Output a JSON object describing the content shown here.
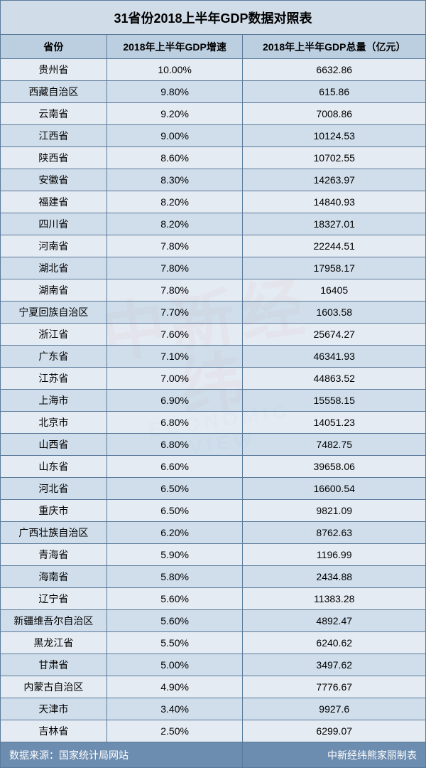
{
  "title": "31省份2018上半年GDP数据对照表",
  "columns": [
    "省份",
    "2018年上半年GDP增速",
    "2018年上半年GDP总量（亿元）"
  ],
  "rows": [
    [
      "贵州省",
      "10.00%",
      "6632.86"
    ],
    [
      "西藏自治区",
      "9.80%",
      "615.86"
    ],
    [
      "云南省",
      "9.20%",
      "7008.86"
    ],
    [
      "江西省",
      "9.00%",
      "10124.53"
    ],
    [
      "陕西省",
      "8.60%",
      "10702.55"
    ],
    [
      "安徽省",
      "8.30%",
      "14263.97"
    ],
    [
      "福建省",
      "8.20%",
      "14840.93"
    ],
    [
      "四川省",
      "8.20%",
      "18327.01"
    ],
    [
      "河南省",
      "7.80%",
      "22244.51"
    ],
    [
      "湖北省",
      "7.80%",
      "17958.17"
    ],
    [
      "湖南省",
      "7.80%",
      "16405"
    ],
    [
      "宁夏回族自治区",
      "7.70%",
      "1603.58"
    ],
    [
      "浙江省",
      "7.60%",
      "25674.27"
    ],
    [
      "广东省",
      "7.10%",
      "46341.93"
    ],
    [
      "江苏省",
      "7.00%",
      "44863.52"
    ],
    [
      "上海市",
      "6.90%",
      "15558.15"
    ],
    [
      "北京市",
      "6.80%",
      "14051.23"
    ],
    [
      "山西省",
      "6.80%",
      "7482.75"
    ],
    [
      "山东省",
      "6.60%",
      "39658.06"
    ],
    [
      "河北省",
      "6.50%",
      "16600.54"
    ],
    [
      "重庆市",
      "6.50%",
      "9821.09"
    ],
    [
      "广西壮族自治区",
      "6.20%",
      "8762.63"
    ],
    [
      "青海省",
      "5.90%",
      "1196.99"
    ],
    [
      "海南省",
      "5.80%",
      "2434.88"
    ],
    [
      "辽宁省",
      "5.60%",
      "11383.28"
    ],
    [
      "新疆维吾尔自治区",
      "5.60%",
      "4892.47"
    ],
    [
      "黑龙江省",
      "5.50%",
      "6240.62"
    ],
    [
      "甘肃省",
      "5.00%",
      "3497.62"
    ],
    [
      "内蒙古自治区",
      "4.90%",
      "7776.67"
    ],
    [
      "天津市",
      "3.40%",
      "9927.6"
    ],
    [
      "吉林省",
      "2.50%",
      "6299.07"
    ]
  ],
  "footer": {
    "source": "数据来源：国家统计局网站",
    "credit": "中新经纬熊家丽制表"
  },
  "watermark": {
    "cn": "中新经纬",
    "en": "ECONOMIC VIEW"
  },
  "style": {
    "title_bg": "#d0dce8",
    "header_bg": "#bccfe0",
    "row_odd_bg": "#e0e8f0",
    "row_even_bg": "#c8d8e8",
    "footer_bg": "#6d8db0",
    "border_color": "#5a7a9a",
    "title_fontsize": 18,
    "cell_fontsize": 14,
    "watermark_color_cn": "#d02020",
    "watermark_color_en": "#4080c0"
  }
}
